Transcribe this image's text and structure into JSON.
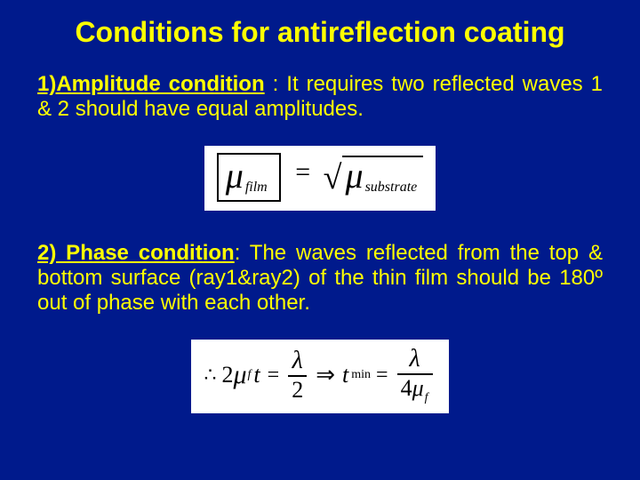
{
  "colors": {
    "background": "#001a8c",
    "text": "#ffff00",
    "formula_bg": "#ffffff",
    "formula_text": "#000000"
  },
  "typography": {
    "title_fontsize": 32,
    "body_fontsize": 24,
    "font_family": "Arial"
  },
  "title": "Conditions for antireflection coating",
  "cond1": {
    "heading": "1)Amplitude condition",
    "body": " : It requires two reflected waves 1 &  2 should have equal amplitudes."
  },
  "formula1": {
    "lhs_symbol": "μ",
    "lhs_sub": "film",
    "op": "=",
    "rhs_symbol": "μ",
    "rhs_sub": "substrate"
  },
  "cond2": {
    "heading": "2) Phase condition",
    "body": ": The waves reflected from the top & bottom surface (ray1&ray2) of the thin film should be 180º out of phase with each other."
  },
  "formula2": {
    "prefix": "∴",
    "lhs_coeff": "2",
    "lhs_symbol": "μ",
    "lhs_sub": "f",
    "lhs_var": "t",
    "eq1": "=",
    "frac1_num": "λ",
    "frac1_den": "2",
    "arrow": "⇒",
    "mid_var": "t",
    "mid_sub": "min",
    "eq2": "=",
    "frac2_num": "λ",
    "frac2_den_coeff": "4",
    "frac2_den_symbol": "μ",
    "frac2_den_sub": "f"
  }
}
